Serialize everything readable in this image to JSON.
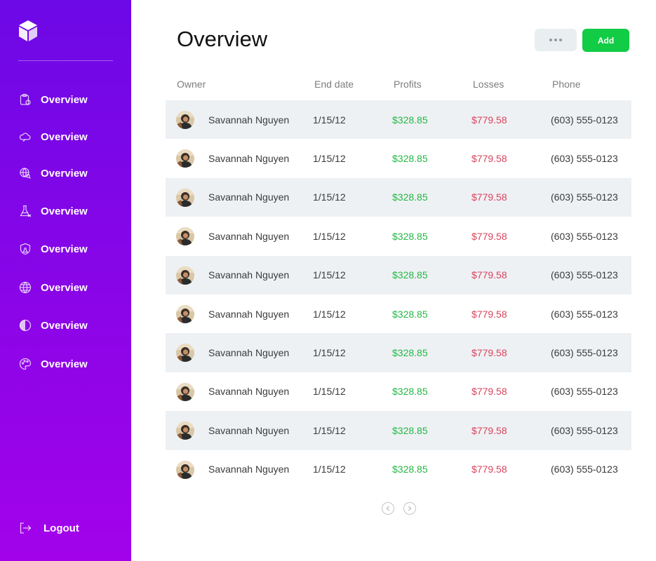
{
  "colors": {
    "sidebar_gradient_top": "#6d08e6",
    "sidebar_gradient_bottom": "#a202ea",
    "add_button": "#12cc45",
    "profit_text": "#23b845",
    "loss_text": "#d9435c",
    "row_stripe": "#eef1f4"
  },
  "sidebar": {
    "logo_icon": "cube-icon",
    "items": [
      {
        "label": "Overview",
        "icon": "clipboard-icon"
      },
      {
        "label": "Overview",
        "icon": "cloud-icon"
      },
      {
        "label": "Overview",
        "icon": "globe-search-icon"
      },
      {
        "label": "Overview",
        "icon": "flask-icon"
      },
      {
        "label": "Overview",
        "icon": "shield-flask-icon"
      },
      {
        "label": "Overview",
        "icon": "globe-icon"
      },
      {
        "label": "Overview",
        "icon": "contrast-icon"
      },
      {
        "label": "Overview",
        "icon": "palette-icon"
      }
    ],
    "logout": {
      "label": "Logout",
      "icon": "logout-icon"
    }
  },
  "header": {
    "title": "Overview",
    "more_icon": "more-dots-icon",
    "add_label": "Add"
  },
  "table": {
    "columns": [
      "Owner",
      "End date",
      "Profits",
      "Losses",
      "Phone"
    ],
    "rows": [
      {
        "owner": "Savannah Nguyen",
        "end_date": "1/15/12",
        "profit": "$328.85",
        "loss": "$779.58",
        "phone": "(603) 555-0123"
      },
      {
        "owner": "Savannah Nguyen",
        "end_date": "1/15/12",
        "profit": "$328.85",
        "loss": "$779.58",
        "phone": "(603) 555-0123"
      },
      {
        "owner": "Savannah Nguyen",
        "end_date": "1/15/12",
        "profit": "$328.85",
        "loss": "$779.58",
        "phone": "(603) 555-0123"
      },
      {
        "owner": "Savannah Nguyen",
        "end_date": "1/15/12",
        "profit": "$328.85",
        "loss": "$779.58",
        "phone": "(603) 555-0123"
      },
      {
        "owner": "Savannah Nguyen",
        "end_date": "1/15/12",
        "profit": "$328.85",
        "loss": "$779.58",
        "phone": "(603) 555-0123"
      },
      {
        "owner": "Savannah Nguyen",
        "end_date": "1/15/12",
        "profit": "$328.85",
        "loss": "$779.58",
        "phone": "(603) 555-0123"
      },
      {
        "owner": "Savannah Nguyen",
        "end_date": "1/15/12",
        "profit": "$328.85",
        "loss": "$779.58",
        "phone": "(603) 555-0123"
      },
      {
        "owner": "Savannah Nguyen",
        "end_date": "1/15/12",
        "profit": "$328.85",
        "loss": "$779.58",
        "phone": "(603) 555-0123"
      },
      {
        "owner": "Savannah Nguyen",
        "end_date": "1/15/12",
        "profit": "$328.85",
        "loss": "$779.58",
        "phone": "(603) 555-0123"
      },
      {
        "owner": "Savannah Nguyen",
        "end_date": "1/15/12",
        "profit": "$328.85",
        "loss": "$779.58",
        "phone": "(603) 555-0123"
      }
    ]
  },
  "pagination": {
    "prev_icon": "chevron-left-icon",
    "next_icon": "chevron-right-icon"
  }
}
